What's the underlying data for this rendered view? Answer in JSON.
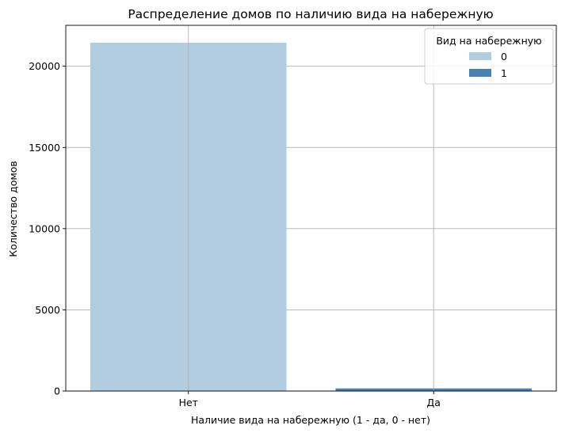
{
  "chart_data": {
    "type": "bar",
    "title": "Распределение домов по наличию вида на набережную",
    "xlabel": "Наличие вида на набережную (1 - да, 0 - нет)",
    "ylabel": "Количество домов",
    "categories": [
      "Нет",
      "Да"
    ],
    "series": [
      {
        "name": "0",
        "color": "#b3cde0",
        "values": [
          21450,
          0
        ]
      },
      {
        "name": "1",
        "color": "#4682b4",
        "values": [
          0,
          163
        ]
      }
    ],
    "yticks": [
      0,
      5000,
      10000,
      15000,
      20000
    ],
    "ytick_labels": [
      "0",
      "5000",
      "10000",
      "15000",
      "20000"
    ],
    "ylim": [
      0,
      22520
    ],
    "grid": true,
    "legend": {
      "title": "Вид на набережную",
      "position": "top-right"
    }
  }
}
